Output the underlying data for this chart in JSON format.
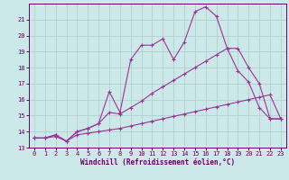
{
  "bg_color": "#cce8e8",
  "grid_color": "#aacccc",
  "line_color": "#993399",
  "xlabel": "Windchill (Refroidissement éolien,°C)",
  "xlim": [
    -0.5,
    23.5
  ],
  "ylim": [
    13,
    22
  ],
  "yticks": [
    13,
    14,
    15,
    16,
    17,
    18,
    19,
    20,
    21
  ],
  "xticks": [
    0,
    1,
    2,
    3,
    4,
    5,
    6,
    7,
    8,
    9,
    10,
    11,
    12,
    13,
    14,
    15,
    16,
    17,
    18,
    19,
    20,
    21,
    22,
    23
  ],
  "line1_x": [
    0,
    1,
    2,
    3,
    4,
    5,
    6,
    7,
    8,
    9,
    10,
    11,
    12,
    13,
    14,
    15,
    16,
    17,
    18,
    19,
    20,
    21,
    22,
    23
  ],
  "line1_y": [
    13.6,
    13.6,
    13.8,
    13.4,
    14.0,
    14.2,
    14.5,
    16.5,
    15.2,
    18.5,
    19.4,
    19.4,
    19.8,
    18.5,
    19.6,
    21.5,
    21.8,
    21.2,
    19.2,
    19.2,
    18.0,
    17.0,
    14.8,
    14.8
  ],
  "line2_x": [
    0,
    1,
    2,
    3,
    4,
    5,
    6,
    7,
    8,
    9,
    10,
    11,
    12,
    13,
    14,
    15,
    16,
    17,
    18,
    19,
    20,
    21,
    22,
    23
  ],
  "line2_y": [
    13.6,
    13.6,
    13.8,
    13.4,
    14.0,
    14.2,
    14.5,
    15.2,
    15.1,
    15.5,
    15.9,
    16.4,
    16.8,
    17.2,
    17.6,
    18.0,
    18.4,
    18.8,
    19.2,
    17.8,
    17.1,
    15.5,
    14.8,
    14.8
  ],
  "line3_x": [
    0,
    1,
    2,
    3,
    4,
    5,
    6,
    7,
    8,
    9,
    10,
    11,
    12,
    13,
    14,
    15,
    16,
    17,
    18,
    19,
    20,
    21,
    22,
    23
  ],
  "line3_y": [
    13.6,
    13.6,
    13.7,
    13.4,
    13.8,
    13.9,
    14.0,
    14.1,
    14.2,
    14.35,
    14.5,
    14.65,
    14.8,
    14.95,
    15.1,
    15.25,
    15.4,
    15.55,
    15.7,
    15.85,
    16.0,
    16.15,
    16.3,
    14.8
  ]
}
